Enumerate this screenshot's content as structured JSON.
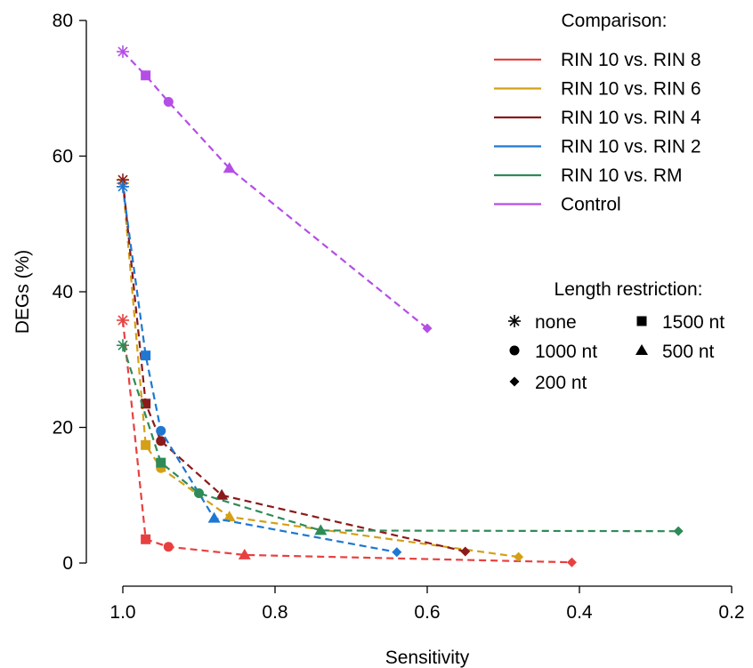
{
  "chart_data": {
    "type": "line",
    "xlabel": "Sensitivity",
    "ylabel": "DEGs (%)",
    "xlim": [
      1.02,
      0.2
    ],
    "ylim": [
      0,
      80
    ],
    "x_reversed": true,
    "grid": false,
    "x_ticks": [
      1.0,
      0.8,
      0.6,
      0.4,
      0.2
    ],
    "x_tick_labels": [
      "1.0",
      "0.8",
      "0.6",
      "0.4",
      "0.2"
    ],
    "y_ticks": [
      0,
      20,
      40,
      60,
      80
    ],
    "y_tick_labels": [
      "0",
      "20",
      "40",
      "60",
      "80"
    ],
    "point_order_labels": [
      "none",
      "1500 nt",
      "1000 nt",
      "500 nt",
      "200 nt"
    ],
    "series": [
      {
        "name": "RIN 10 vs. RIN 8",
        "color": "#e84040",
        "points": [
          [
            1.0,
            35.8
          ],
          [
            0.97,
            3.5
          ],
          [
            0.94,
            2.4
          ],
          [
            0.84,
            1.2
          ],
          [
            0.41,
            0.1
          ]
        ]
      },
      {
        "name": "RIN 10 vs. RIN 6",
        "color": "#d4a017",
        "points": [
          [
            1.0,
            56.0
          ],
          [
            0.97,
            17.4
          ],
          [
            0.95,
            14.0
          ],
          [
            0.86,
            6.8
          ],
          [
            0.48,
            0.9
          ]
        ]
      },
      {
        "name": "RIN 10 vs. RIN 4",
        "color": "#8b1a1a",
        "points": [
          [
            1.0,
            56.5
          ],
          [
            0.97,
            23.5
          ],
          [
            0.95,
            18.0
          ],
          [
            0.87,
            10.0
          ],
          [
            0.55,
            1.7
          ]
        ]
      },
      {
        "name": "RIN 10 vs. RIN 2",
        "color": "#1e78d2",
        "points": [
          [
            1.0,
            55.5
          ],
          [
            0.97,
            30.6
          ],
          [
            0.95,
            19.5
          ],
          [
            0.88,
            6.6
          ],
          [
            0.64,
            1.6
          ]
        ]
      },
      {
        "name": "RIN 10 vs. RM",
        "color": "#2e8b57",
        "points": [
          [
            1.0,
            32.1
          ],
          [
            0.95,
            14.8
          ],
          [
            0.9,
            10.3
          ],
          [
            0.74,
            4.8
          ],
          [
            0.27,
            4.7
          ]
        ]
      },
      {
        "name": "Control",
        "color": "#b44ee6",
        "points": [
          [
            1.0,
            75.4
          ],
          [
            0.97,
            71.9
          ],
          [
            0.94,
            68.0
          ],
          [
            0.86,
            58.2
          ],
          [
            0.6,
            34.6
          ]
        ]
      }
    ],
    "legend_comparison": {
      "title": "Comparison:",
      "entries": [
        "RIN 10 vs. RIN 8",
        "RIN 10 vs. RIN 6",
        "RIN 10 vs. RIN 4",
        "RIN 10 vs. RIN 2",
        "RIN 10 vs. RM",
        "Control"
      ],
      "placement": "top-right"
    },
    "legend_length": {
      "title": "Length restriction:",
      "entries": [
        {
          "label": "none",
          "marker": "asterisk"
        },
        {
          "label": "1500 nt",
          "marker": "square"
        },
        {
          "label": "1000 nt",
          "marker": "circle"
        },
        {
          "label": "500 nt",
          "marker": "triangle"
        },
        {
          "label": "200 nt",
          "marker": "diamond"
        }
      ],
      "placement": "right"
    }
  }
}
